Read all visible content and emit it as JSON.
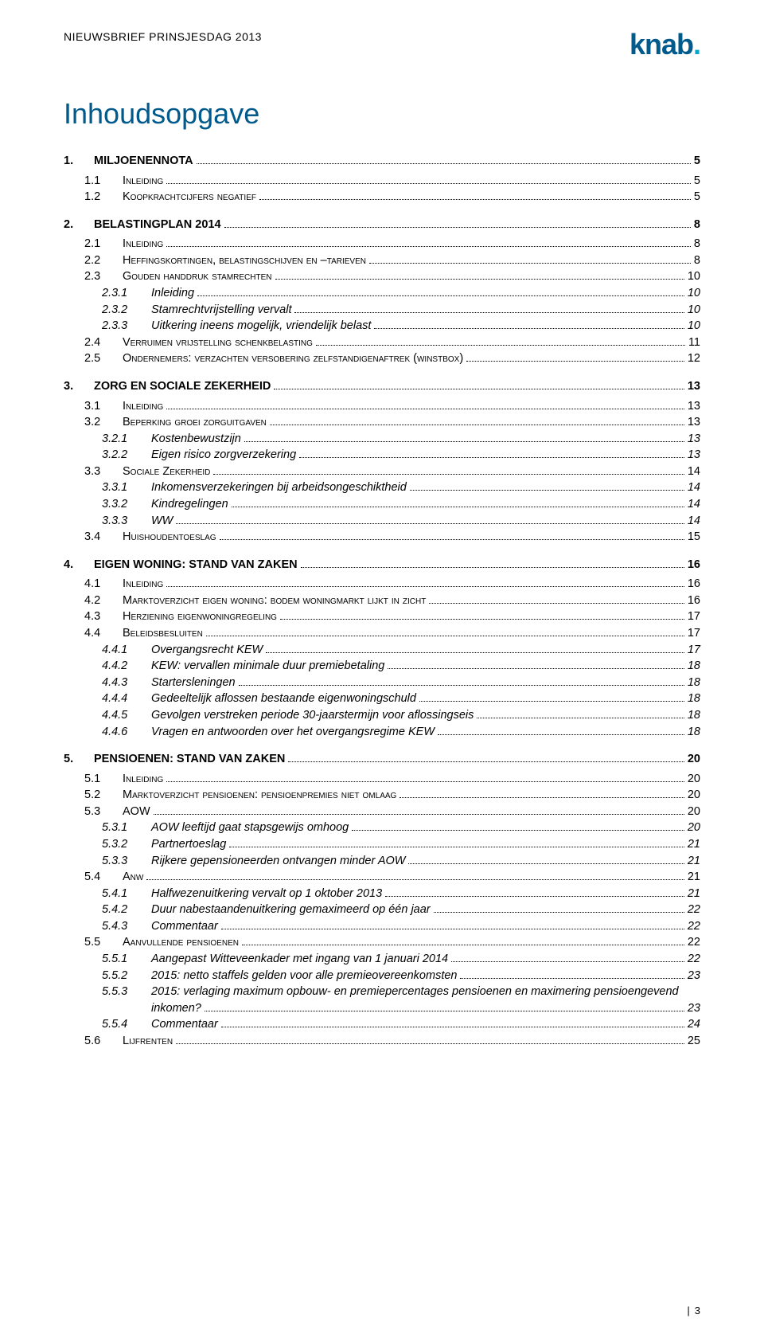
{
  "header": {
    "title": "NIEUWSBRIEF PRINSJESDAG 2013",
    "logo_main": "knab",
    "logo_dot": "."
  },
  "main_title": "Inhoudsopgave",
  "page_number": "3",
  "toc": [
    {
      "level": 1,
      "num": "1.",
      "label": "MILJOENENNOTA",
      "page": "5"
    },
    {
      "level": 2,
      "num": "1.1",
      "label": "Inleiding",
      "page": "5"
    },
    {
      "level": 2,
      "num": "1.2",
      "label": "Koopkrachtcijfers negatief",
      "page": "5"
    },
    {
      "level": 1,
      "num": "2.",
      "label": "BELASTINGPLAN 2014",
      "page": "8"
    },
    {
      "level": 2,
      "num": "2.1",
      "label": "Inleiding",
      "page": "8"
    },
    {
      "level": 2,
      "num": "2.2",
      "label": "Heffingskortingen, belastingschijven en –tarieven",
      "page": "8"
    },
    {
      "level": 2,
      "num": "2.3",
      "label": "Gouden handdruk stamrechten",
      "page": "10"
    },
    {
      "level": 3,
      "num": "2.3.1",
      "label": "Inleiding",
      "page": "10"
    },
    {
      "level": 3,
      "num": "2.3.2",
      "label": "Stamrechtvrijstelling vervalt",
      "page": "10"
    },
    {
      "level": 3,
      "num": "2.3.3",
      "label": "Uitkering ineens mogelijk, vriendelijk belast",
      "page": "10"
    },
    {
      "level": 2,
      "num": "2.4",
      "label": "Verruimen vrijstelling schenkbelasting",
      "page": "11"
    },
    {
      "level": 2,
      "num": "2.5",
      "label": "Ondernemers: verzachten versobering zelfstandigenaftrek (winstbox)",
      "page": "12"
    },
    {
      "level": 1,
      "num": "3.",
      "label": "ZORG EN SOCIALE ZEKERHEID",
      "page": "13"
    },
    {
      "level": 2,
      "num": "3.1",
      "label": "Inleiding",
      "page": "13"
    },
    {
      "level": 2,
      "num": "3.2",
      "label": "Beperking groei zorguitgaven",
      "page": "13"
    },
    {
      "level": 3,
      "num": "3.2.1",
      "label": "Kostenbewustzijn",
      "page": "13"
    },
    {
      "level": 3,
      "num": "3.2.2",
      "label": "Eigen risico zorgverzekering",
      "page": "13"
    },
    {
      "level": 2,
      "num": "3.3",
      "label": "Sociale Zekerheid",
      "page": "14"
    },
    {
      "level": 3,
      "num": "3.3.1",
      "label": "Inkomensverzekeringen bij arbeidsongeschiktheid",
      "page": "14"
    },
    {
      "level": 3,
      "num": "3.3.2",
      "label": "Kindregelingen",
      "page": "14"
    },
    {
      "level": 3,
      "num": "3.3.3",
      "label": "WW",
      "page": "14"
    },
    {
      "level": 2,
      "num": "3.4",
      "label": "Huishoudentoeslag",
      "page": "15"
    },
    {
      "level": 1,
      "num": "4.",
      "label": "EIGEN WONING: STAND VAN ZAKEN",
      "page": "16"
    },
    {
      "level": 2,
      "num": "4.1",
      "label": "Inleiding",
      "page": "16"
    },
    {
      "level": 2,
      "num": "4.2",
      "label": "Marktoverzicht eigen woning: bodem woningmarkt lijkt in zicht",
      "page": "16"
    },
    {
      "level": 2,
      "num": "4.3",
      "label": "Herziening eigenwoningregeling",
      "page": "17"
    },
    {
      "level": 2,
      "num": "4.4",
      "label": "Beleidsbesluiten",
      "page": "17"
    },
    {
      "level": 3,
      "num": "4.4.1",
      "label": "Overgangsrecht KEW",
      "page": "17"
    },
    {
      "level": 3,
      "num": "4.4.2",
      "label": "KEW: vervallen minimale duur premiebetaling",
      "page": "18"
    },
    {
      "level": 3,
      "num": "4.4.3",
      "label": "Startersleningen",
      "page": "18"
    },
    {
      "level": 3,
      "num": "4.4.4",
      "label": "Gedeeltelijk aflossen bestaande eigenwoningschuld",
      "page": "18"
    },
    {
      "level": 3,
      "num": "4.4.5",
      "label": "Gevolgen verstreken periode 30-jaarstermijn voor aflossingseis",
      "page": "18"
    },
    {
      "level": 3,
      "num": "4.4.6",
      "label": "Vragen en antwoorden over het overgangsregime KEW",
      "page": "18"
    },
    {
      "level": 1,
      "num": "5.",
      "label": "PENSIOENEN: STAND VAN ZAKEN",
      "page": "20"
    },
    {
      "level": 2,
      "num": "5.1",
      "label": "Inleiding",
      "page": "20"
    },
    {
      "level": 2,
      "num": "5.2",
      "label": "Marktoverzicht pensioenen: pensioenpremies niet omlaag",
      "page": "20"
    },
    {
      "level": 2,
      "num": "5.3",
      "label": "AOW",
      "page": "20"
    },
    {
      "level": 3,
      "num": "5.3.1",
      "label": "AOW leeftijd gaat stapsgewijs omhoog",
      "page": "20"
    },
    {
      "level": 3,
      "num": "5.3.2",
      "label": "Partnertoeslag",
      "page": "21"
    },
    {
      "level": 3,
      "num": "5.3.3",
      "label": "Rijkere gepensioneerden ontvangen minder AOW",
      "page": "21"
    },
    {
      "level": 2,
      "num": "5.4",
      "label": "Anw",
      "page": "21"
    },
    {
      "level": 3,
      "num": "5.4.1",
      "label": "Halfwezenuitkering vervalt op 1 oktober 2013",
      "page": "21"
    },
    {
      "level": 3,
      "num": "5.4.2",
      "label": "Duur nabestaandenuitkering gemaximeerd op één jaar",
      "page": "22"
    },
    {
      "level": 3,
      "num": "5.4.3",
      "label": "Commentaar",
      "page": "22"
    },
    {
      "level": 2,
      "num": "5.5",
      "label": "Aanvullende pensioenen",
      "page": "22"
    },
    {
      "level": 3,
      "num": "5.5.1",
      "label": "Aangepast Witteveenkader met ingang van 1 januari 2014",
      "page": "22"
    },
    {
      "level": 3,
      "num": "5.5.2",
      "label": "2015: netto staffels gelden voor alle premieovereenkomsten",
      "page": "23"
    },
    {
      "level": 3,
      "num": "5.5.3",
      "label": "2015: verlaging maximum opbouw- en premiepercentages pensioenen en maximering pensioengevend inkomen?",
      "page": "23",
      "wrap": true
    },
    {
      "level": 3,
      "num": "5.5.4",
      "label": "Commentaar",
      "page": "24"
    },
    {
      "level": 2,
      "num": "5.6",
      "label": "Lijfrenten",
      "page": "25"
    }
  ]
}
